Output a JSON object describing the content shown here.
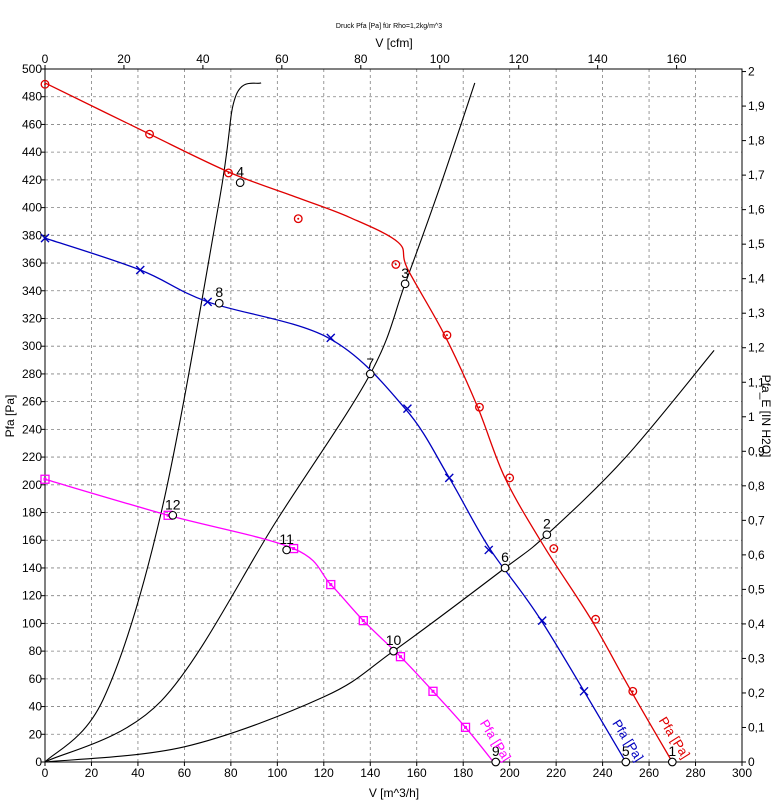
{
  "chart_data": {
    "type": "line",
    "title": "Druck Pfa [Pa] für Rho=1,2kg/m^3",
    "xlabel": "V [m^3/h]",
    "ylabel": "Pfa [Pa]",
    "x2label": "V [cfm]",
    "y2label": "Pfa_E [IN H2O]",
    "xlim": [
      0,
      300
    ],
    "ylim": [
      0,
      500
    ],
    "x2lim": [
      0,
      176.57
    ],
    "y2lim": [
      0,
      2.0074
    ],
    "grid": true,
    "x_ticks": [
      0,
      20,
      40,
      60,
      80,
      100,
      120,
      140,
      160,
      180,
      200,
      220,
      240,
      260,
      280,
      300
    ],
    "y_ticks": [
      0,
      20,
      40,
      60,
      80,
      100,
      120,
      140,
      160,
      180,
      200,
      220,
      240,
      260,
      280,
      300,
      320,
      340,
      360,
      380,
      400,
      420,
      440,
      460,
      480,
      500
    ],
    "x2_ticks": [
      0,
      20,
      40,
      60,
      80,
      100,
      120,
      140,
      160
    ],
    "y2_ticks": [
      0,
      0.1,
      0.2,
      0.3,
      0.4,
      0.5,
      0.6,
      0.7,
      0.8,
      0.9,
      1,
      1.1,
      1.2,
      1.3,
      1.4,
      1.5,
      1.6,
      1.7,
      1.8,
      1.9,
      2
    ],
    "x_tick_labels": [
      "0",
      "20",
      "40",
      "60",
      "80",
      "100",
      "120",
      "140",
      "160",
      "180",
      "200",
      "220",
      "240",
      "260",
      "280",
      "300"
    ],
    "y_tick_labels": [
      "0",
      "20",
      "40",
      "60",
      "80",
      "100",
      "120",
      "140",
      "160",
      "180",
      "200",
      "220",
      "240",
      "260",
      "280",
      "300",
      "320",
      "340",
      "360",
      "380",
      "400",
      "420",
      "440",
      "460",
      "480",
      "500"
    ],
    "x2_tick_labels": [
      "0",
      "20",
      "40",
      "60",
      "80",
      "100",
      "120",
      "140",
      "160"
    ],
    "y2_tick_labels": [
      "0",
      "0,1",
      "0,2",
      "0,3",
      "0,4",
      "0,5",
      "0,6",
      "0,7",
      "0,8",
      "0,9",
      "1",
      "1,1",
      "1,2",
      "1,3",
      "1,4",
      "1,5",
      "1,6",
      "1,7",
      "1,8",
      "1,9",
      "2"
    ],
    "series": [
      {
        "name": "Pfa [Pa]",
        "color": "#e00000",
        "marker": "circle",
        "x": [
          0,
          45,
          80,
          109,
          131,
          152,
          156,
          172,
          186,
          198,
          215,
          235,
          252,
          270
        ],
        "y": [
          490,
          453,
          425,
          407,
          393,
          375,
          356,
          308,
          257,
          205,
          155,
          103,
          52,
          0
        ],
        "marker_x": [
          0,
          45,
          79,
          109,
          151,
          173,
          187,
          200,
          219,
          237,
          253
        ],
        "marker_y": [
          489,
          453,
          425,
          392,
          359,
          308,
          256,
          205,
          154,
          103,
          51
        ]
      },
      {
        "name": "Pfa [Pa]",
        "color": "#0000c0",
        "marker": "x",
        "x": [
          0,
          41,
          70,
          122,
          155,
          174,
          191,
          214,
          250
        ],
        "y": [
          378,
          355,
          332,
          306,
          255,
          205,
          155,
          101,
          0
        ],
        "marker_x": [
          0,
          41,
          70,
          123,
          156,
          174,
          191,
          214,
          232
        ],
        "marker_y": [
          378,
          355,
          332,
          306,
          255,
          205,
          153,
          102,
          51
        ]
      },
      {
        "name": "Pfa [Pa]",
        "color": "#ff00ff",
        "marker": "square",
        "x": [
          0,
          53,
          107,
          123,
          137,
          153,
          167,
          181,
          193
        ],
        "y": [
          204,
          178,
          154,
          128,
          102,
          76,
          51,
          25,
          0
        ],
        "marker_x": [
          0,
          53,
          107,
          123,
          137,
          153,
          167,
          181
        ],
        "marker_y": [
          204,
          178,
          154,
          128,
          102,
          76,
          51,
          25
        ]
      }
    ],
    "system_curves": [
      {
        "k_x": [
          0,
          25,
          50,
          75,
          82,
          93
        ],
        "k_y": [
          0,
          45,
          180,
          405,
          480,
          490
        ]
      },
      {
        "k_x": [
          0,
          50,
          100,
          140,
          155,
          170,
          185
        ],
        "k_y": [
          0,
          44,
          175,
          280,
          345,
          415,
          490
        ]
      },
      {
        "k_x": [
          0,
          60,
          120,
          150,
          198,
          216,
          250,
          288
        ],
        "k_y": [
          0,
          11,
          47,
          80,
          140,
          164,
          220,
          297
        ]
      }
    ],
    "operating_points": [
      {
        "label": "1",
        "x": 270,
        "y": 0
      },
      {
        "label": "2",
        "x": 216,
        "y": 164
      },
      {
        "label": "3",
        "x": 155,
        "y": 345
      },
      {
        "label": "4",
        "x": 84,
        "y": 418
      },
      {
        "label": "5",
        "x": 250,
        "y": 0
      },
      {
        "label": "6",
        "x": 198,
        "y": 140
      },
      {
        "label": "7",
        "x": 140,
        "y": 280
      },
      {
        "label": "8",
        "x": 75,
        "y": 331
      },
      {
        "label": "9",
        "x": 194,
        "y": 0
      },
      {
        "label": "10",
        "x": 150,
        "y": 80
      },
      {
        "label": "11",
        "x": 104,
        "y": 153
      },
      {
        "label": "12",
        "x": 55,
        "y": 178
      }
    ],
    "curve_labels": [
      {
        "text": "Pfa [Pa]",
        "color": "#e00000",
        "x": 264,
        "y": 30
      },
      {
        "text": "Pfa [Pa]",
        "color": "#0000c0",
        "x": 244,
        "y": 28
      },
      {
        "text": "Pfa [Pa]",
        "color": "#ff00ff",
        "x": 187,
        "y": 28
      }
    ]
  }
}
